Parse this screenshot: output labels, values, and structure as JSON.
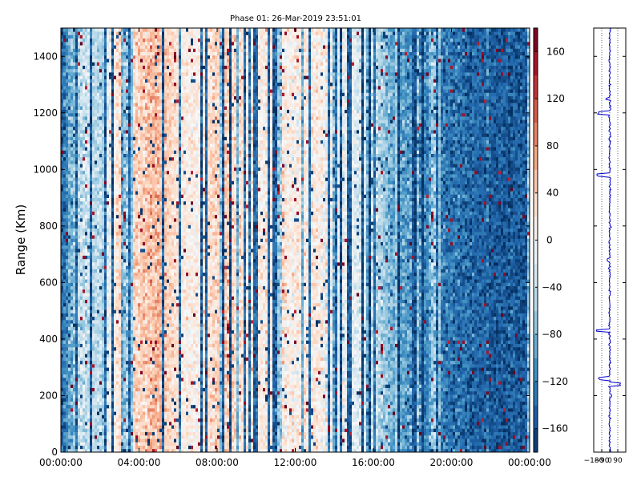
{
  "chart_data": [
    {
      "type": "heatmap",
      "title": "Phase 01: 26-Mar-2019 23:51:01",
      "xlabel": "",
      "ylabel": "Range (Km)",
      "x_ticks": [
        "00:00:00",
        "04:00:00",
        "08:00:00",
        "12:00:00",
        "16:00:00",
        "20:00:00",
        "00:00:00"
      ],
      "y_ticks": [
        0,
        200,
        400,
        600,
        800,
        1000,
        1200,
        1400
      ],
      "ylim": [
        0,
        1500
      ],
      "xlim_hours": [
        0,
        24
      ],
      "colorbar": {
        "ticks": [
          -160,
          -120,
          -80,
          -40,
          0,
          40,
          80,
          120,
          160
        ],
        "range": [
          -180,
          180
        ],
        "colormap": "RdBu_r",
        "colors": [
          "#053061",
          "#2166ac",
          "#4393c3",
          "#92c5de",
          "#d1e5f0",
          "#f7f7f7",
          "#fddbc7",
          "#f4a582",
          "#d6604d",
          "#b2182b",
          "#67001f"
        ]
      },
      "column_mean_profile_deg": [
        {
          "hour": 0.0,
          "value": -150
        },
        {
          "hour": 1.0,
          "value": -40
        },
        {
          "hour": 2.0,
          "value": -50
        },
        {
          "hour": 3.0,
          "value": 30
        },
        {
          "hour": 4.0,
          "value": 40
        },
        {
          "hour": 5.0,
          "value": 60
        },
        {
          "hour": 6.0,
          "value": 20
        },
        {
          "hour": 7.0,
          "value": 10
        },
        {
          "hour": 8.0,
          "value": 40
        },
        {
          "hour": 9.0,
          "value": 30
        },
        {
          "hour": 10.0,
          "value": 10
        },
        {
          "hour": 11.0,
          "value": 20
        },
        {
          "hour": 12.0,
          "value": 10
        },
        {
          "hour": 13.0,
          "value": 20
        },
        {
          "hour": 14.0,
          "value": -10
        },
        {
          "hour": 15.0,
          "value": -20
        },
        {
          "hour": 16.0,
          "value": -40
        },
        {
          "hour": 17.0,
          "value": -90
        },
        {
          "hour": 18.0,
          "value": -110
        },
        {
          "hour": 19.0,
          "value": -120
        },
        {
          "hour": 20.0,
          "value": -130
        },
        {
          "hour": 21.0,
          "value": -140
        },
        {
          "hour": 22.0,
          "value": -150
        },
        {
          "hour": 23.0,
          "value": -150
        },
        {
          "hour": 24.0,
          "value": -150
        }
      ]
    },
    {
      "type": "line",
      "xlabel": "",
      "ylabel": "",
      "x_ticks": [
        "−180",
        "−90",
        "0",
        "90"
      ],
      "xlim": [
        -180,
        180
      ],
      "ylim": [
        0,
        1500
      ],
      "line_color": "#0000cc",
      "profile": [
        {
          "range_km": 0,
          "phase": 5
        },
        {
          "range_km": 100,
          "phase": -5
        },
        {
          "range_km": 200,
          "phase": 10
        },
        {
          "range_km": 240,
          "phase": 120
        },
        {
          "range_km": 260,
          "phase": -120
        },
        {
          "range_km": 300,
          "phase": 0
        },
        {
          "range_km": 430,
          "phase": -150
        },
        {
          "range_km": 500,
          "phase": 5
        },
        {
          "range_km": 600,
          "phase": 0
        },
        {
          "range_km": 680,
          "phase": -30
        },
        {
          "range_km": 800,
          "phase": 5
        },
        {
          "range_km": 980,
          "phase": -140
        },
        {
          "range_km": 1000,
          "phase": 5
        },
        {
          "range_km": 1200,
          "phase": -130
        },
        {
          "range_km": 1250,
          "phase": -40
        },
        {
          "range_km": 1400,
          "phase": 0
        },
        {
          "range_km": 1500,
          "phase": 5
        }
      ]
    }
  ]
}
